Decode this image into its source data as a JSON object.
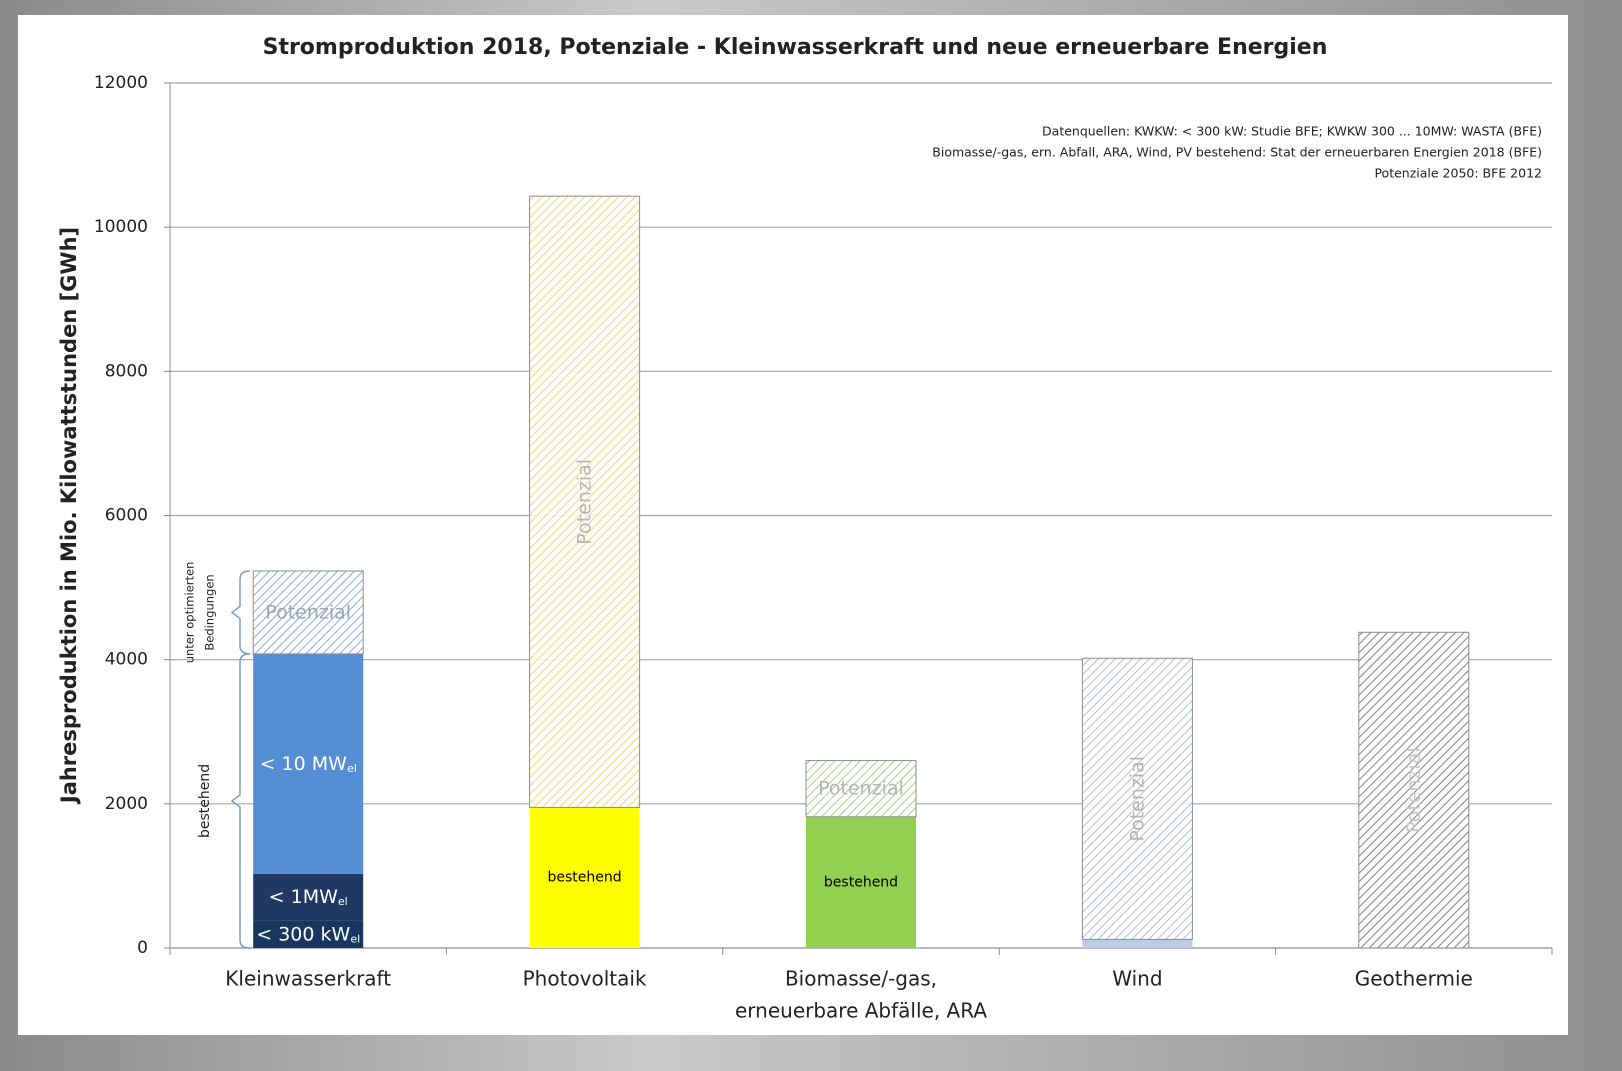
{
  "chart_data": {
    "type": "stacked_bar",
    "title": "Stromproduktion 2018, Potenziale - Kleinwasserkraft und neue erneuerbare Energien",
    "y_label": "Jahresproduktion in Mio. Kilowattstunden [GWh]",
    "source_note": [
      "Datenquellen: KWKW: < 300 kW: Studie BFE; KWKW 300 ... 10MW: WASTA (BFE)",
      "Biomasse/-gas, ern. Abfall, ARA, Wind, PV bestehend: Stat der erneuerbaren Energien 2018 (BFE)",
      "Potenziale 2050: BFE 2012"
    ],
    "bracket_labels": {
      "existing": "bestehend",
      "optimized": [
        "unter optimierten",
        "Bedingungen"
      ]
    },
    "categories": [
      "Kleinwasserkraft",
      "Photovoltaik",
      [
        "Biomasse/-gas,",
        "erneuerbare Abfälle, ARA"
      ],
      "Wind",
      "Geothermie"
    ],
    "stacks": [
      [
        {
          "label": "< 300 kW",
          "sub": "el",
          "value": 380,
          "color": "#17375e",
          "label_color": "#ffffff"
        },
        {
          "label": "< 1MW",
          "sub": "el",
          "value": 650,
          "color": "#1f3864",
          "label_color": "#ffffff"
        },
        {
          "label": "< 10 MW",
          "sub": "el",
          "value": 3050,
          "color": "#558ed5",
          "label_color": "#ffffff"
        },
        {
          "label": "Potenzial",
          "value": 1150,
          "color": "#8eaadb",
          "hatched": true,
          "label_color": "#9aa7b8"
        }
      ],
      [
        {
          "label": "bestehend",
          "value": 1950,
          "color": "#ffff00",
          "label_color": "#000000"
        },
        {
          "label": "Potenzial",
          "value": 8480,
          "color": "#e6dc7a",
          "hatched": true,
          "rotated": true,
          "label_color": "#b4b4b4"
        }
      ],
      [
        {
          "label": "bestehend",
          "value": 1820,
          "color": "#92d050",
          "label_color": "#000000"
        },
        {
          "label": "Potenzial",
          "value": 780,
          "color": "#a9d08e",
          "hatched": true,
          "label_color": "#b4b4b4"
        }
      ],
      [
        {
          "value": 120,
          "color": "#b9cde5"
        },
        {
          "label": "Potenzial",
          "value": 3900,
          "color": "#b4bfcc",
          "hatched": true,
          "rotated": true,
          "label_color": "#b4b4b4"
        }
      ],
      [
        {
          "value": 0,
          "color": "#808080"
        },
        {
          "label": "Potenzial",
          "value": 4380,
          "color": "#808080",
          "hatched": true,
          "rotated": true,
          "label_color": "#c8c8c8"
        }
      ]
    ],
    "ylim": [
      0,
      12000
    ],
    "yticks": [
      0,
      2000,
      4000,
      6000,
      8000,
      10000,
      12000
    ],
    "grid": true
  }
}
